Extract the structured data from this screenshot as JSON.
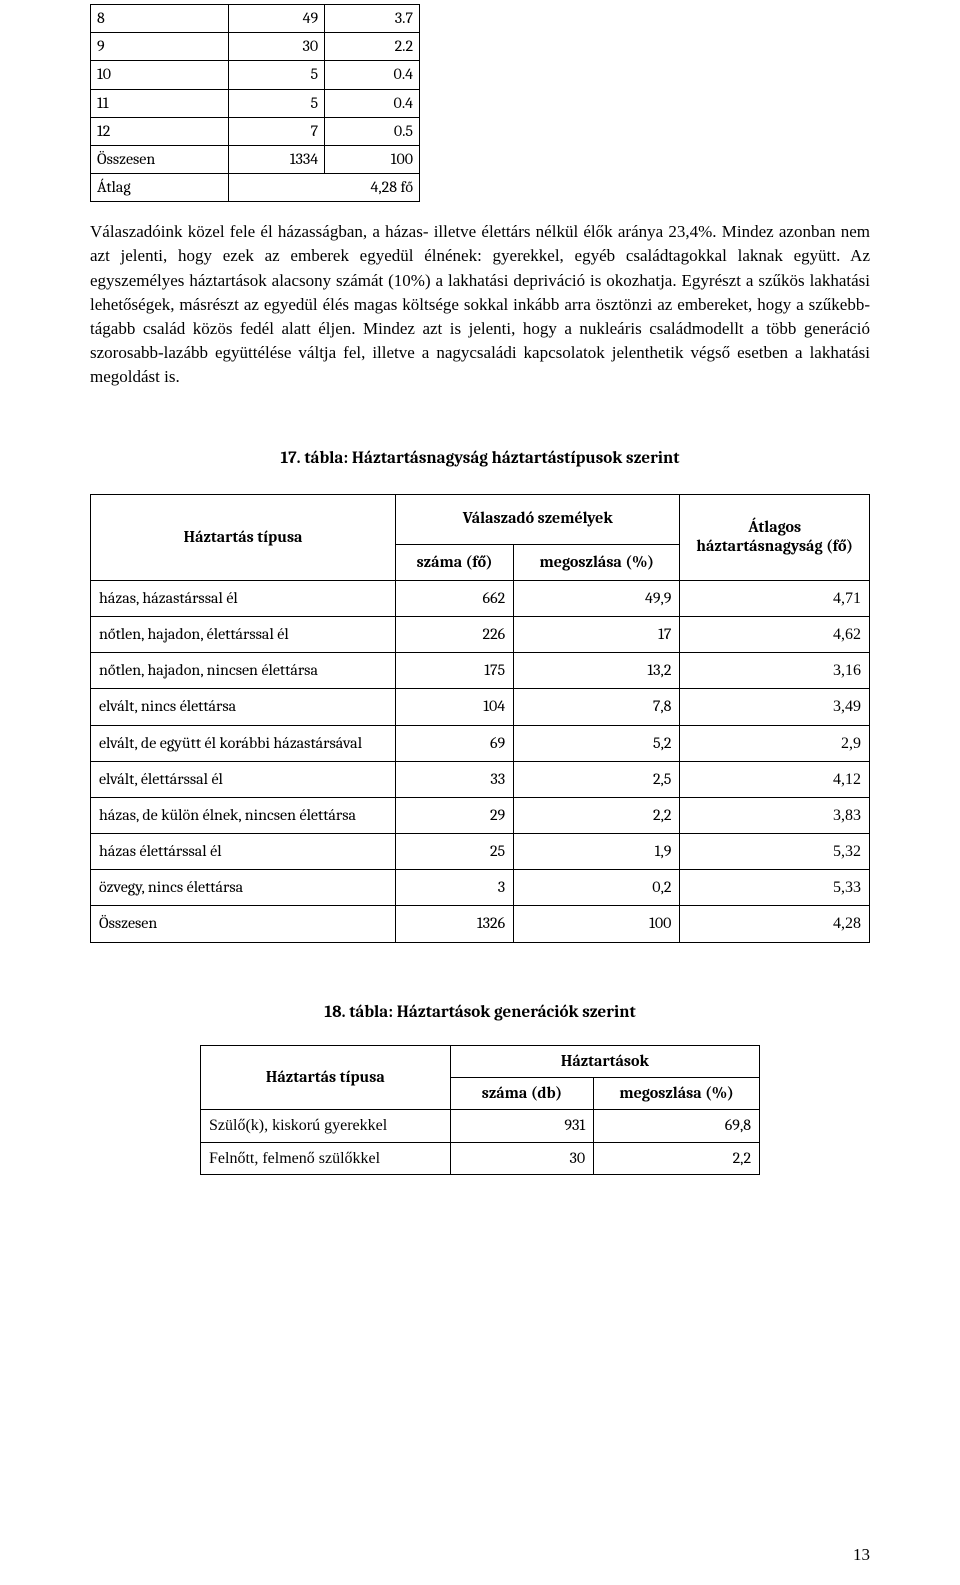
{
  "table1": {
    "rows": [
      [
        "8",
        "49",
        "3.7"
      ],
      [
        "9",
        "30",
        "2.2"
      ],
      [
        "10",
        "5",
        "0.4"
      ],
      [
        "11",
        "5",
        "0.4"
      ],
      [
        "12",
        "7",
        "0.5"
      ]
    ],
    "total_label": "Összesen",
    "total_n": "1334",
    "total_pct": "100",
    "avg_label": "Átlag",
    "avg_value": "4,28 fő"
  },
  "paragraph": "Válaszadóink közel fele él házasságban, a házas- illetve élettárs nélkül élők aránya 23,4%. Mindez azonban nem azt jelenti, hogy ezek az emberek egyedül élnének: gyerekkel, egyéb családtagokkal laknak együtt. Az egyszemélyes háztartások alacsony számát (10%) a lakhatási depriváció is okozhatja. Egyrészt a szűkös lakhatási lehetőségek, másrészt az egyedül élés magas költsége sokkal inkább arra ösztönzi az embereket, hogy a szűkebb-tágabb család közös fedél alatt éljen. Mindez azt is jelenti, hogy a nukleáris családmodellt a több generáció szorosabb-lazább együttélése váltja fel, illetve a nagycsaládi kapcsolatok jelenthetik végső esetben a lakhatási megoldást is.",
  "table2": {
    "caption": "17. tábla: Háztartásnagyság háztartástípusok szerint",
    "header": {
      "type": "Háztartás típusa",
      "resp_group": "Válaszadó személyek",
      "count": "száma (fő)",
      "pct": "megoszlása (%)",
      "avg": "Átlagos háztartásnagyság (fő)"
    },
    "rows": [
      [
        "házas, házastárssal él",
        "662",
        "49,9",
        "4,71"
      ],
      [
        "nőtlen, hajadon, élettárssal él",
        "226",
        "17",
        "4,62"
      ],
      [
        "nőtlen, hajadon, nincsen élettársa",
        "175",
        "13,2",
        "3,16"
      ],
      [
        "elvált, nincs élettársa",
        "104",
        "7,8",
        "3,49"
      ],
      [
        "elvált, de együtt él korábbi házastársával",
        "69",
        "5,2",
        "2,9"
      ],
      [
        "elvált, élettárssal él",
        "33",
        "2,5",
        "4,12"
      ],
      [
        "házas, de külön élnek, nincsen élettársa",
        "29",
        "2,2",
        "3,83"
      ],
      [
        "házas élettárssal él",
        "25",
        "1,9",
        "5,32"
      ],
      [
        "özvegy, nincs élettársa",
        "3",
        "0,2",
        "5,33"
      ],
      [
        "Összesen",
        "1326",
        "100",
        "4,28"
      ]
    ]
  },
  "table3": {
    "caption": "18. tábla: Háztartások generációk szerint",
    "header": {
      "type": "Háztartás típusa",
      "group": "Háztartások",
      "count": "száma (db)",
      "pct": "megoszlása (%)"
    },
    "rows": [
      [
        "Szülő(k), kiskorú gyerekkel",
        "931",
        "69,8"
      ],
      [
        "Felnőtt, felmenő szülőkkel",
        "30",
        "2,2"
      ]
    ]
  },
  "page_number": "13"
}
